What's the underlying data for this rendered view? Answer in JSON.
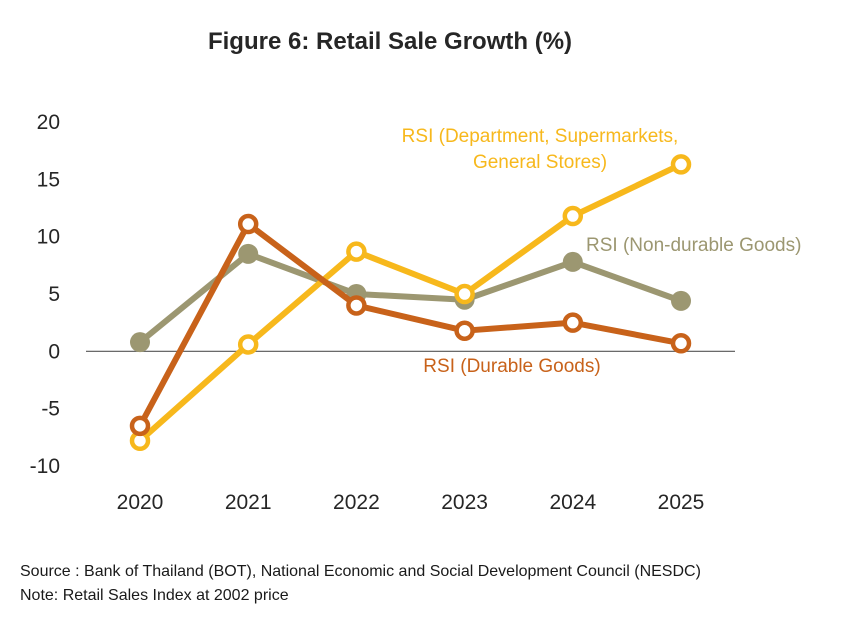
{
  "chart_data": {
    "type": "line",
    "title": "Figure 6: Retail Sale Growth (%)",
    "x": [
      "2020",
      "2021",
      "2022",
      "2023",
      "2024",
      "2025"
    ],
    "ylim": [
      -10,
      20
    ],
    "yticks": [
      20,
      15,
      10,
      5,
      0,
      -5,
      -10
    ],
    "ytick_labels": [
      "20",
      "15",
      "10",
      "5",
      "0",
      "-5",
      "-10"
    ],
    "grid": false,
    "series": [
      {
        "name": "RSI (Non-durable Goods)",
        "label_lines": [
          "RSI (Non-durable Goods)"
        ],
        "color": "#9c9771",
        "marker": "filled",
        "values": [
          0.8,
          8.5,
          5.0,
          4.5,
          7.8,
          4.4
        ]
      },
      {
        "name": "RSI (Department, Supermarkets, General Stores)",
        "label_lines": [
          "RSI (Department, Supermarkets,",
          "General Stores)"
        ],
        "color": "#f7b81c",
        "marker": "hollow",
        "values": [
          -7.8,
          0.6,
          8.7,
          5.0,
          11.8,
          16.3
        ]
      },
      {
        "name": "RSI (Durable Goods)",
        "label_lines": [
          "RSI (Durable Goods)"
        ],
        "color": "#c8621a",
        "marker": "hollow",
        "values": [
          -6.5,
          11.1,
          4.0,
          1.8,
          2.5,
          0.7
        ]
      }
    ]
  },
  "footer": {
    "source": "Source : Bank of Thailand (BOT), National Economic and Social Development Council (NESDC)",
    "note": "Note: Retail Sales Index at 2002 price"
  }
}
